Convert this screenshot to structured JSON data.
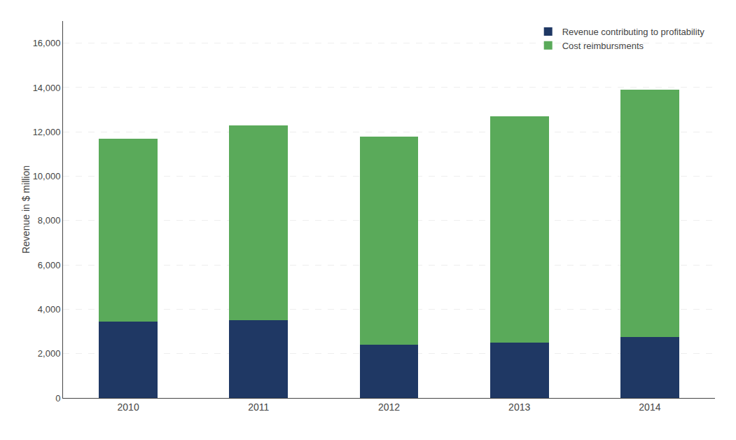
{
  "chart_data": {
    "type": "bar",
    "stacked": true,
    "categories": [
      "2010",
      "2011",
      "2012",
      "2013",
      "2014"
    ],
    "series": [
      {
        "name": "Revenue contributing to profitability",
        "color": "#1f3864",
        "values": [
          3450,
          3500,
          2400,
          2500,
          2750
        ]
      },
      {
        "name": "Cost reimbursments",
        "color": "#5aaa5a",
        "values": [
          8250,
          8800,
          9400,
          10200,
          11150
        ]
      }
    ],
    "ylabel": "Revenue in $ million",
    "ylim": [
      0,
      17000
    ],
    "yticks": [
      0,
      {
        "value": 2000,
        "label": "2,000"
      },
      {
        "value": 4000,
        "label": "4,000"
      },
      {
        "value": 6000,
        "label": "6,000"
      },
      {
        "value": 8000,
        "label": "8,000"
      },
      {
        "value": 10000,
        "label": "10,000"
      },
      {
        "value": 12000,
        "label": "12,000"
      },
      {
        "value": 14000,
        "label": "14,000"
      },
      {
        "value": 16000,
        "label": "16,000"
      }
    ],
    "grid": true,
    "legend": "upper right"
  }
}
